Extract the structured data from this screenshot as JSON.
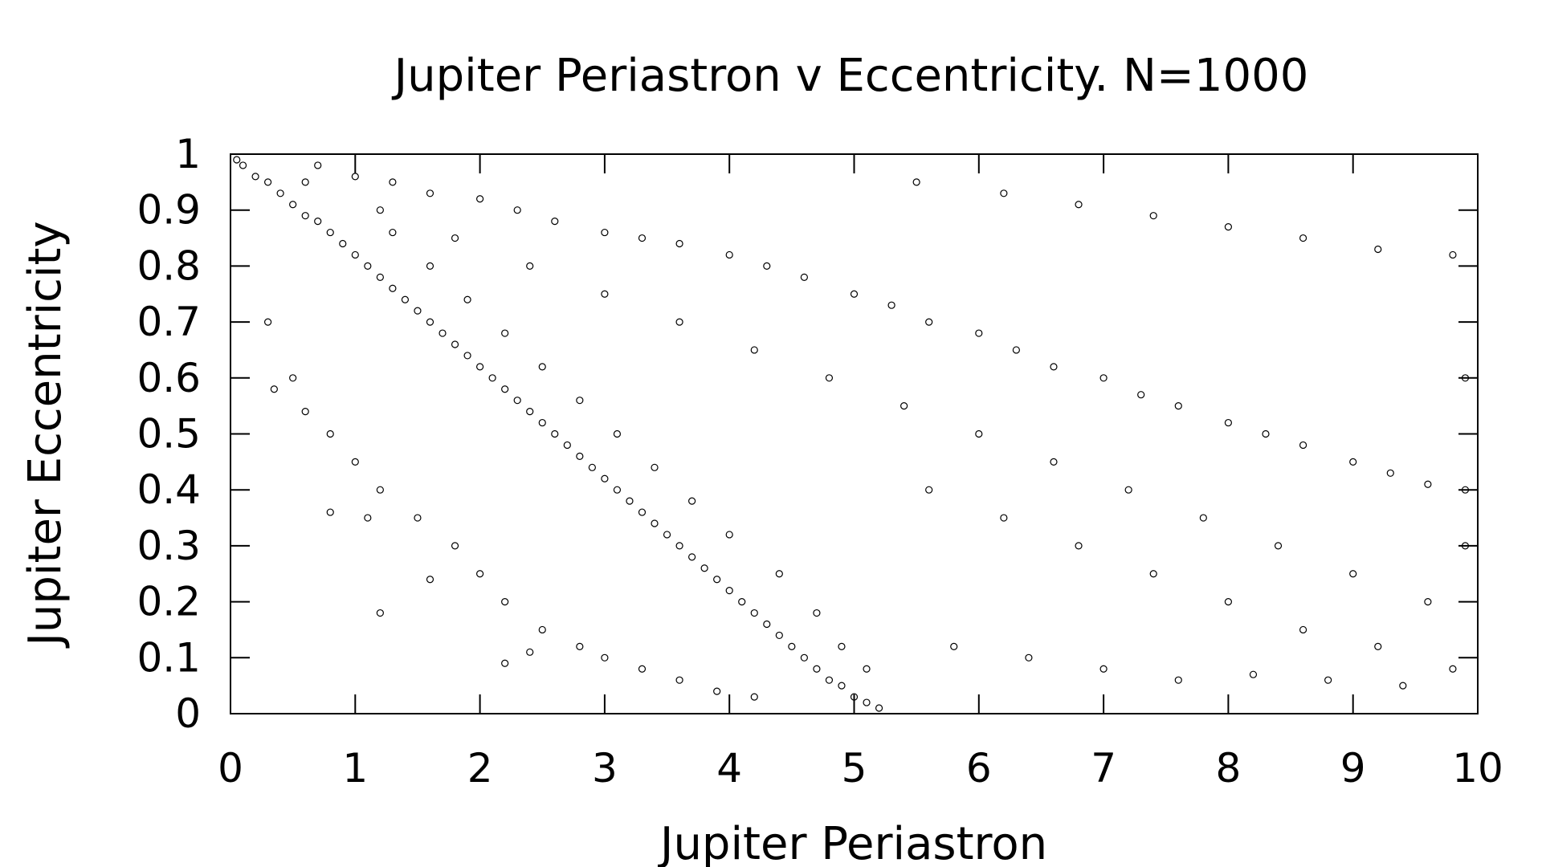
{
  "colors": {
    "background": "#ffffff",
    "axes": "#000000",
    "points": "#000000"
  },
  "chart_data": {
    "type": "scatter",
    "title": "Jupiter Periastron v Eccentricity. N=1000",
    "xlabel": "Jupiter Periastron",
    "ylabel": "Jupiter Eccentricity",
    "xlim": [
      0,
      10
    ],
    "ylim": [
      0,
      1
    ],
    "xticks": [
      0,
      1,
      2,
      3,
      4,
      5,
      6,
      7,
      8,
      9,
      10
    ],
    "yticks": [
      0,
      0.1,
      0.2,
      0.3,
      0.4,
      0.5,
      0.6,
      0.7,
      0.8,
      0.9,
      1
    ],
    "xtick_labels": [
      "0",
      "1",
      "2",
      "3",
      "4",
      "5",
      "6",
      "7",
      "8",
      "9",
      "10"
    ],
    "ytick_labels": [
      "0",
      "0.1",
      "0.2",
      "0.3",
      "0.4",
      "0.5",
      "0.6",
      "0.7",
      "0.8",
      "0.9",
      "1"
    ],
    "grid": false,
    "legend": "none",
    "marker": "open-circle",
    "series": [
      {
        "values": [
          [
            0.05,
            0.99
          ],
          [
            0.1,
            0.98
          ],
          [
            0.2,
            0.96
          ],
          [
            0.3,
            0.95
          ],
          [
            0.4,
            0.93
          ],
          [
            0.5,
            0.91
          ],
          [
            0.6,
            0.89
          ],
          [
            0.7,
            0.88
          ],
          [
            0.8,
            0.86
          ],
          [
            0.9,
            0.84
          ],
          [
            1.0,
            0.82
          ],
          [
            1.1,
            0.8
          ],
          [
            1.2,
            0.78
          ],
          [
            1.3,
            0.76
          ],
          [
            1.4,
            0.74
          ],
          [
            1.5,
            0.72
          ],
          [
            1.6,
            0.7
          ],
          [
            1.7,
            0.68
          ],
          [
            1.8,
            0.66
          ],
          [
            1.9,
            0.64
          ],
          [
            2.0,
            0.62
          ],
          [
            2.1,
            0.6
          ],
          [
            2.2,
            0.58
          ],
          [
            2.3,
            0.56
          ],
          [
            2.4,
            0.54
          ],
          [
            2.5,
            0.52
          ],
          [
            2.6,
            0.5
          ],
          [
            2.7,
            0.48
          ],
          [
            2.8,
            0.46
          ],
          [
            2.9,
            0.44
          ],
          [
            3.0,
            0.42
          ],
          [
            3.1,
            0.4
          ],
          [
            3.2,
            0.38
          ],
          [
            3.3,
            0.36
          ],
          [
            3.4,
            0.34
          ],
          [
            3.5,
            0.32
          ],
          [
            3.6,
            0.3
          ],
          [
            3.7,
            0.28
          ],
          [
            3.8,
            0.26
          ],
          [
            3.9,
            0.24
          ],
          [
            4.0,
            0.22
          ],
          [
            4.1,
            0.2
          ],
          [
            4.2,
            0.18
          ],
          [
            4.3,
            0.16
          ],
          [
            4.4,
            0.14
          ],
          [
            4.5,
            0.12
          ],
          [
            4.6,
            0.1
          ],
          [
            4.7,
            0.08
          ],
          [
            4.8,
            0.06
          ],
          [
            4.9,
            0.05
          ],
          [
            5.0,
            0.03
          ],
          [
            5.1,
            0.02
          ],
          [
            5.2,
            0.01
          ],
          [
            0.3,
            0.7
          ],
          [
            0.5,
            0.6
          ],
          [
            0.8,
            0.5
          ],
          [
            1.0,
            0.45
          ],
          [
            1.2,
            0.4
          ],
          [
            1.5,
            0.35
          ],
          [
            1.8,
            0.3
          ],
          [
            2.0,
            0.25
          ],
          [
            2.2,
            0.2
          ],
          [
            2.5,
            0.15
          ],
          [
            2.8,
            0.12
          ],
          [
            3.0,
            0.1
          ],
          [
            3.3,
            0.08
          ],
          [
            3.6,
            0.06
          ],
          [
            3.9,
            0.04
          ],
          [
            4.2,
            0.03
          ],
          [
            1.2,
            0.18
          ],
          [
            2.2,
            0.09
          ],
          [
            2.4,
            0.11
          ],
          [
            0.8,
            0.36
          ],
          [
            0.35,
            0.58
          ],
          [
            0.6,
            0.54
          ],
          [
            1.1,
            0.35
          ],
          [
            1.6,
            0.24
          ],
          [
            0.7,
            0.98
          ],
          [
            1.0,
            0.96
          ],
          [
            1.3,
            0.95
          ],
          [
            1.6,
            0.93
          ],
          [
            2.0,
            0.92
          ],
          [
            2.3,
            0.9
          ],
          [
            2.6,
            0.88
          ],
          [
            3.0,
            0.86
          ],
          [
            3.3,
            0.85
          ],
          [
            3.6,
            0.84
          ],
          [
            4.0,
            0.82
          ],
          [
            4.3,
            0.8
          ],
          [
            4.6,
            0.78
          ],
          [
            5.0,
            0.75
          ],
          [
            5.3,
            0.73
          ],
          [
            5.6,
            0.7
          ],
          [
            6.0,
            0.68
          ],
          [
            6.3,
            0.65
          ],
          [
            6.6,
            0.62
          ],
          [
            7.0,
            0.6
          ],
          [
            7.3,
            0.57
          ],
          [
            7.6,
            0.55
          ],
          [
            8.0,
            0.52
          ],
          [
            8.3,
            0.5
          ],
          [
            8.6,
            0.48
          ],
          [
            9.0,
            0.45
          ],
          [
            9.3,
            0.43
          ],
          [
            9.6,
            0.41
          ],
          [
            9.9,
            0.4
          ],
          [
            5.5,
            0.95
          ],
          [
            6.2,
            0.93
          ],
          [
            6.8,
            0.91
          ],
          [
            7.4,
            0.89
          ],
          [
            8.0,
            0.87
          ],
          [
            8.6,
            0.85
          ],
          [
            9.2,
            0.83
          ],
          [
            9.8,
            0.82
          ],
          [
            5.6,
            0.4
          ],
          [
            6.2,
            0.35
          ],
          [
            6.8,
            0.3
          ],
          [
            7.4,
            0.25
          ],
          [
            8.0,
            0.2
          ],
          [
            8.6,
            0.15
          ],
          [
            9.2,
            0.12
          ],
          [
            9.8,
            0.08
          ],
          [
            5.8,
            0.12
          ],
          [
            6.4,
            0.1
          ],
          [
            7.0,
            0.08
          ],
          [
            7.6,
            0.06
          ],
          [
            8.2,
            0.07
          ],
          [
            8.8,
            0.06
          ],
          [
            9.4,
            0.05
          ],
          [
            9.9,
            0.3
          ],
          [
            9.9,
            0.6
          ],
          [
            9.6,
            0.2
          ],
          [
            9.0,
            0.25
          ],
          [
            8.4,
            0.3
          ],
          [
            7.8,
            0.35
          ],
          [
            7.2,
            0.4
          ],
          [
            6.6,
            0.45
          ],
          [
            6.0,
            0.5
          ],
          [
            5.4,
            0.55
          ],
          [
            4.8,
            0.6
          ],
          [
            4.2,
            0.65
          ],
          [
            3.6,
            0.7
          ],
          [
            3.0,
            0.75
          ],
          [
            2.4,
            0.8
          ],
          [
            1.8,
            0.85
          ],
          [
            1.2,
            0.9
          ],
          [
            0.6,
            0.95
          ],
          [
            4.9,
            0.12
          ],
          [
            5.1,
            0.08
          ],
          [
            4.7,
            0.18
          ],
          [
            4.4,
            0.25
          ],
          [
            4.0,
            0.32
          ],
          [
            3.7,
            0.38
          ],
          [
            3.4,
            0.44
          ],
          [
            3.1,
            0.5
          ],
          [
            2.8,
            0.56
          ],
          [
            2.5,
            0.62
          ],
          [
            2.2,
            0.68
          ],
          [
            1.9,
            0.74
          ],
          [
            1.6,
            0.8
          ],
          [
            1.3,
            0.86
          ]
        ]
      }
    ]
  }
}
